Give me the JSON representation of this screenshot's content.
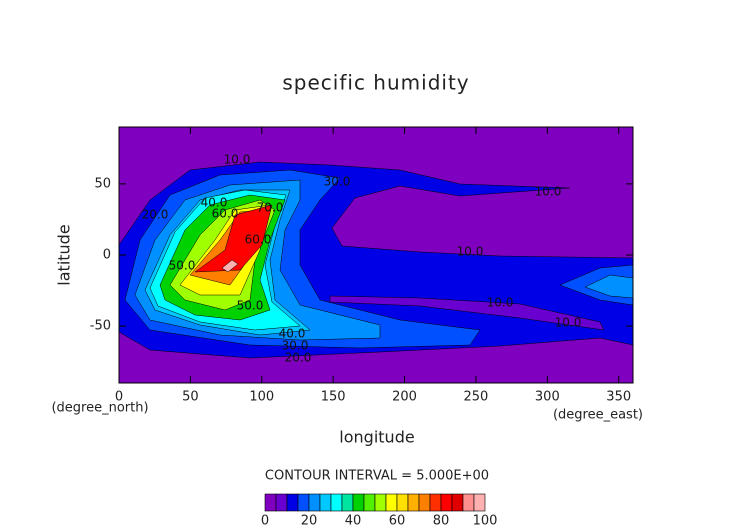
{
  "chart_data": {
    "type": "contour",
    "title": "specific humidity",
    "xlabel": "longitude",
    "ylabel": "latitude",
    "xunit": "(degree_east)",
    "yunit": "(degree_north)",
    "xlim": [
      0,
      360
    ],
    "ylim": [
      -90,
      90
    ],
    "xticks": [
      0,
      50,
      100,
      150,
      200,
      250,
      300,
      350
    ],
    "yticks": [
      -50,
      0,
      50
    ],
    "contour_interval": "CONTOUR INTERVAL = 5.000E+00",
    "levels": [
      0,
      5,
      10,
      15,
      20,
      25,
      30,
      35,
      40,
      45,
      50,
      55,
      60,
      65,
      70,
      75,
      80,
      85,
      90,
      95,
      100
    ],
    "colors": [
      "#7f00bf",
      "#6a00d0",
      "#0000e6",
      "#0050ff",
      "#0090ff",
      "#00c8ff",
      "#00ffff",
      "#00e6a0",
      "#00d200",
      "#50f000",
      "#a0ff00",
      "#ffff00",
      "#ffe000",
      "#ffb000",
      "#ff8000",
      "#ff3000",
      "#ff0000",
      "#e00000",
      "#ff9090",
      "#ffb0b0"
    ],
    "colorbar_ticks": [
      0,
      20,
      40,
      60,
      80,
      100
    ],
    "contour_labels": [
      "10.0",
      "30.0",
      "10.0",
      "10.0",
      "10.0",
      "10.0",
      "20.0",
      "40.0",
      "60.0",
      "70.0",
      "60.0",
      "50.0",
      "50.0",
      "40.0",
      "30.0",
      "20.0"
    ]
  }
}
